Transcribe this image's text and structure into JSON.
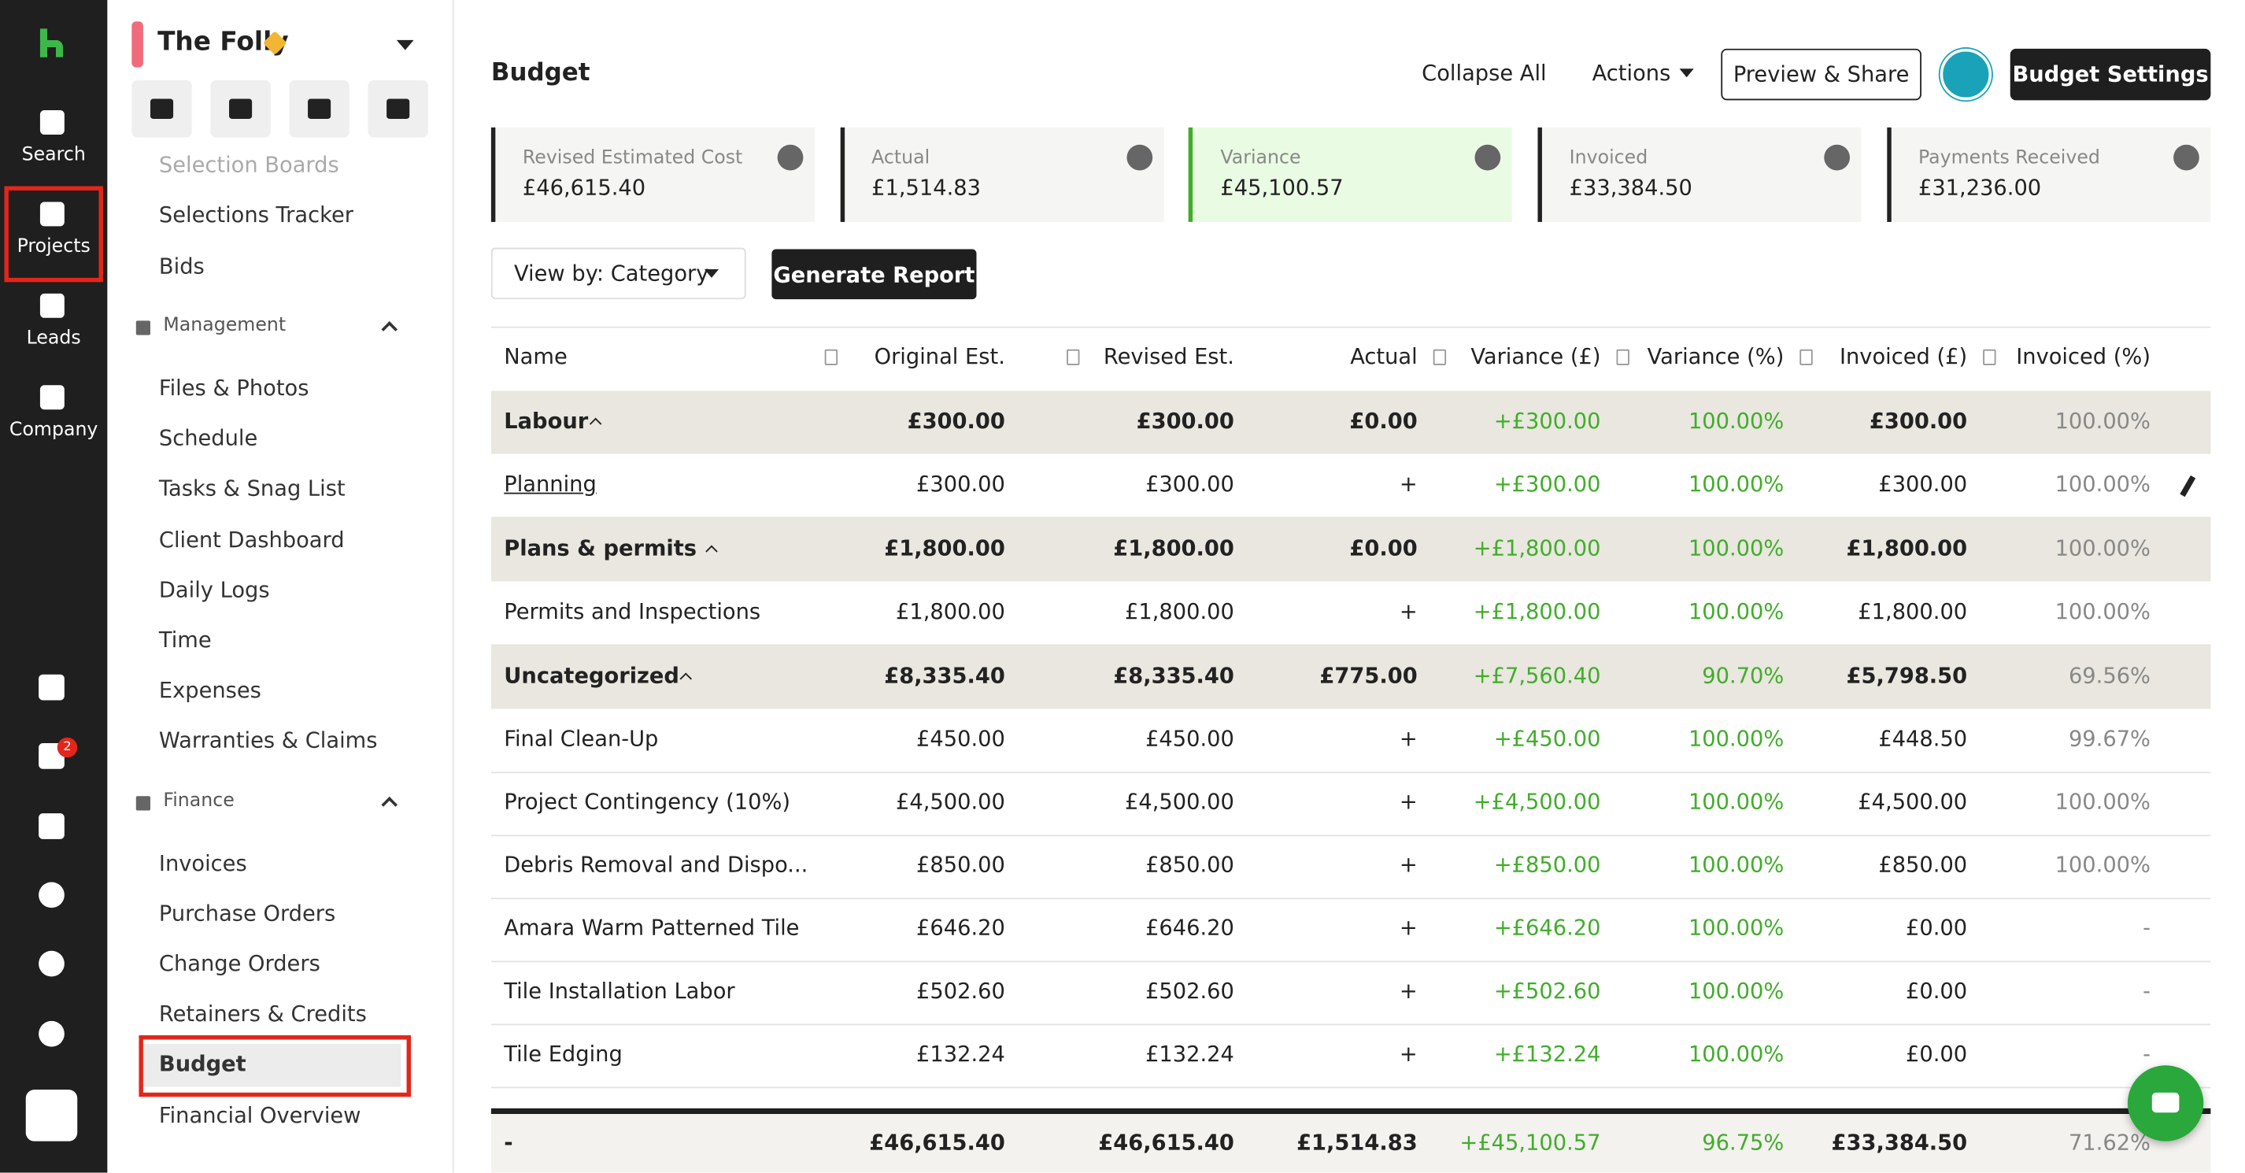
{
  "nav": {
    "items": [
      "Search",
      "Projects",
      "Leads",
      "Company"
    ],
    "badge": "2"
  },
  "project": {
    "name": "The Folly",
    "top": [
      "Selection Boards",
      "Selections Tracker",
      "Bids"
    ],
    "groups": [
      {
        "title": "Management",
        "items": [
          "Files & Photos",
          "Schedule",
          "Tasks & Snag List",
          "Client Dashboard",
          "Daily Logs",
          "Time",
          "Expenses",
          "Warranties & Claims"
        ]
      },
      {
        "title": "Finance",
        "items": [
          "Invoices",
          "Purchase Orders",
          "Change Orders",
          "Retainers & Credits",
          "Budget",
          "Financial Overview"
        ]
      }
    ]
  },
  "header": {
    "title": "Budget",
    "collapse": "Collapse All",
    "actions": "Actions",
    "share": "Preview & Share",
    "settings": "Budget Settings"
  },
  "cards": [
    {
      "label": "Revised Estimated Cost",
      "value": "£46,615.40"
    },
    {
      "label": "Actual",
      "value": "£1,514.83"
    },
    {
      "label": "Variance",
      "value": "£45,100.57"
    },
    {
      "label": "Invoiced",
      "value": "£33,384.50"
    },
    {
      "label": "Payments Received",
      "value": "£31,236.00"
    }
  ],
  "toolbar": {
    "view": "View by: Category",
    "report": "Generate Report"
  },
  "table": {
    "columns": [
      "Name",
      "Original Est.",
      "Revised Est.",
      "Actual",
      "Variance (£)",
      "Variance (%)",
      "Invoiced (£)",
      "Invoiced (%)"
    ],
    "groups": [
      {
        "totals": [
          "Labour",
          "£300.00",
          "£300.00",
          "£0.00",
          "+£300.00",
          "100.00%",
          "£300.00",
          "100.00%"
        ],
        "rows": [
          [
            "Planning",
            "£300.00",
            "£300.00",
            "+",
            "+£300.00",
            "100.00%",
            "£300.00",
            "100.00%"
          ]
        ]
      },
      {
        "totals": [
          "Plans & permits",
          "£1,800.00",
          "£1,800.00",
          "£0.00",
          "+£1,800.00",
          "100.00%",
          "£1,800.00",
          "100.00%"
        ],
        "rows": [
          [
            "Permits and Inspections",
            "£1,800.00",
            "£1,800.00",
            "+",
            "+£1,800.00",
            "100.00%",
            "£1,800.00",
            "100.00%"
          ]
        ]
      },
      {
        "totals": [
          "Uncategorized",
          "£8,335.40",
          "£8,335.40",
          "£775.00",
          "+£7,560.40",
          "90.70%",
          "£5,798.50",
          "69.56%"
        ],
        "rows": [
          [
            "Final Clean-Up",
            "£450.00",
            "£450.00",
            "+",
            "+£450.00",
            "100.00%",
            "£448.50",
            "99.67%"
          ],
          [
            "Project Contingency (10%)",
            "£4,500.00",
            "£4,500.00",
            "+",
            "+£4,500.00",
            "100.00%",
            "£4,500.00",
            "100.00%"
          ],
          [
            "Debris Removal and Dispo...",
            "£850.00",
            "£850.00",
            "+",
            "+£850.00",
            "100.00%",
            "£850.00",
            "100.00%"
          ],
          [
            "Amara Warm Patterned Tile",
            "£646.20",
            "£646.20",
            "+",
            "+£646.20",
            "100.00%",
            "£0.00",
            "-"
          ],
          [
            "Tile Installation Labor",
            "£502.60",
            "£502.60",
            "+",
            "+£502.60",
            "100.00%",
            "£0.00",
            "-"
          ],
          [
            "Tile Edging",
            "£132.24",
            "£132.24",
            "+",
            "+£132.24",
            "100.00%",
            "£0.00",
            "-"
          ]
        ]
      }
    ],
    "footer": [
      "-",
      "£46,615.40",
      "£46,615.40",
      "£1,514.83",
      "+£45,100.57",
      "96.75%",
      "£33,384.50",
      "71.62%"
    ]
  }
}
